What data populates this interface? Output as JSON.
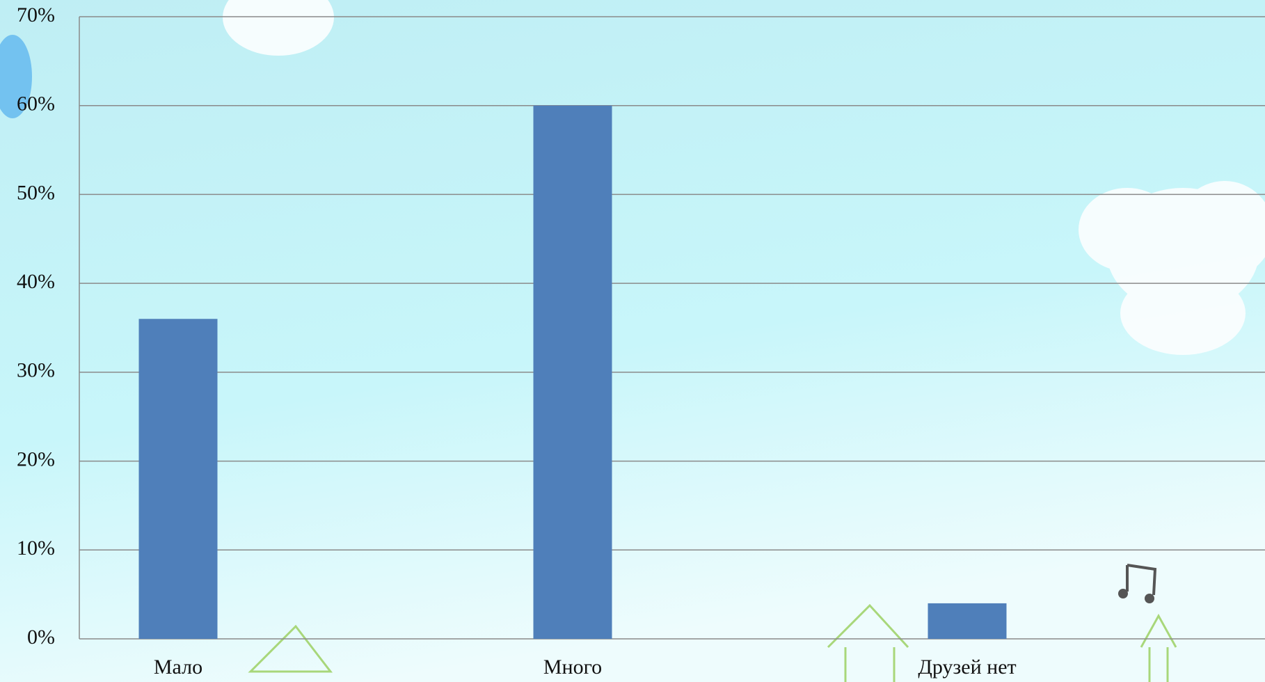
{
  "chart_data": {
    "type": "bar",
    "categories": [
      "Мало",
      "Много",
      "Друзей нет"
    ],
    "values": [
      36,
      60,
      4
    ],
    "color": "#4f7fba",
    "ylim": [
      0,
      70
    ],
    "yticks": [
      {
        "value": 0,
        "label": "0%"
      },
      {
        "value": 10,
        "label": "10%"
      },
      {
        "value": 20,
        "label": "20%"
      },
      {
        "value": 30,
        "label": "30%"
      },
      {
        "value": 40,
        "label": "40%"
      },
      {
        "value": 50,
        "label": "50%"
      },
      {
        "value": 60,
        "label": "60%"
      },
      {
        "value": 70,
        "label": "70%"
      }
    ],
    "grid": true
  }
}
